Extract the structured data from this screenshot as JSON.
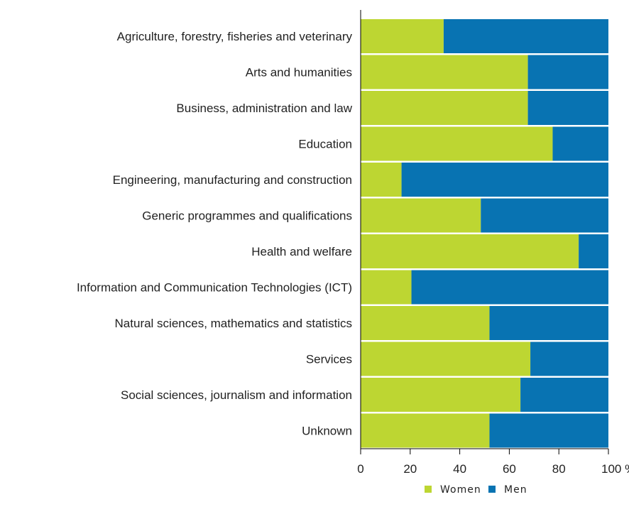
{
  "chart_data": {
    "type": "bar",
    "orientation": "horizontal",
    "stacked": "percent",
    "categories": [
      "Agriculture, forestry, fisheries and veterinary",
      "Arts and humanities",
      "Business, administration and law",
      "Education",
      "Engineering, manufacturing and construction",
      "Generic programmes and qualifications",
      "Health and welfare",
      "Information and Communication Technologies (ICT)",
      "Natural sciences, mathematics and statistics",
      "Services",
      "Social sciences, journalism and information",
      "Unknown"
    ],
    "series": [
      {
        "name": "Women",
        "color": "#bdd632",
        "values": [
          33.5,
          67.5,
          67.5,
          77.5,
          16.5,
          48.5,
          88,
          20.5,
          52,
          68.5,
          64.5,
          52
        ]
      },
      {
        "name": "Men",
        "color": "#0873b2",
        "values": [
          66.5,
          32.5,
          32.5,
          22.5,
          83.5,
          51.5,
          12,
          79.5,
          48,
          31.5,
          35.5,
          48
        ]
      }
    ],
    "xlim": [
      0,
      100
    ],
    "xticks": [
      "0",
      "20",
      "40",
      "60",
      "80",
      "100 %"
    ],
    "grid": false,
    "legend_position": "bottom-right"
  }
}
